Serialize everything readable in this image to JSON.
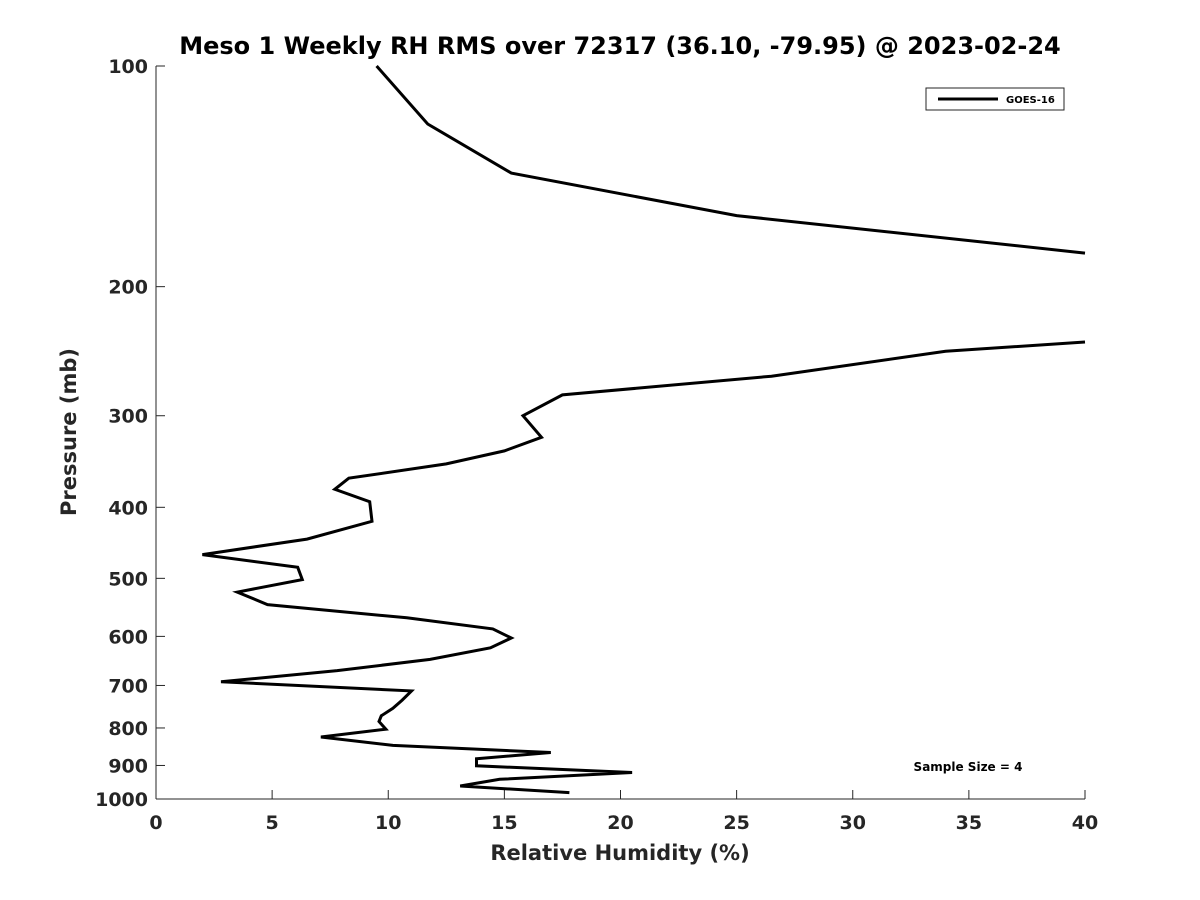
{
  "chart_data": {
    "type": "line",
    "title": "Meso 1 Weekly RH RMS over 72317 (36.10, -79.95) @ 2023-02-24",
    "xlabel": "Relative Humidity (%)",
    "ylabel": "Pressure (mb)",
    "xlim": [
      0,
      40
    ],
    "ylim": [
      100,
      1000
    ],
    "y_scale": "log",
    "y_reversed": true,
    "x_ticks": [
      "0",
      "5",
      "10",
      "15",
      "20",
      "25",
      "30",
      "35",
      "40"
    ],
    "y_ticks": [
      "100",
      "200",
      "300",
      "400",
      "500",
      "600",
      "700",
      "800",
      "900",
      "1000"
    ],
    "grid": false,
    "legend_position": "top-right",
    "annotation": "Sample Size = 4",
    "series": [
      {
        "name": "GOES-16",
        "color": "#000000",
        "segments": [
          [
            {
              "x": 9.5,
              "y": 100
            },
            {
              "x": 11.7,
              "y": 120
            },
            {
              "x": 15.3,
              "y": 140
            },
            {
              "x": 25.0,
              "y": 160
            },
            {
              "x": 40.0,
              "y": 180
            }
          ],
          [
            {
              "x": 40.0,
              "y": 238
            },
            {
              "x": 34.0,
              "y": 245
            },
            {
              "x": 26.5,
              "y": 265
            },
            {
              "x": 17.5,
              "y": 281
            },
            {
              "x": 15.8,
              "y": 300
            },
            {
              "x": 16.6,
              "y": 321
            },
            {
              "x": 15.0,
              "y": 335
            },
            {
              "x": 12.5,
              "y": 349
            },
            {
              "x": 8.3,
              "y": 365
            },
            {
              "x": 7.7,
              "y": 378
            },
            {
              "x": 9.2,
              "y": 393
            },
            {
              "x": 9.3,
              "y": 418
            },
            {
              "x": 6.5,
              "y": 442
            },
            {
              "x": 2.0,
              "y": 464
            },
            {
              "x": 6.1,
              "y": 483
            },
            {
              "x": 6.3,
              "y": 502
            },
            {
              "x": 3.5,
              "y": 522
            },
            {
              "x": 4.8,
              "y": 543
            },
            {
              "x": 10.8,
              "y": 566
            },
            {
              "x": 14.5,
              "y": 586
            },
            {
              "x": 15.3,
              "y": 603
            },
            {
              "x": 14.4,
              "y": 622
            },
            {
              "x": 11.8,
              "y": 645
            },
            {
              "x": 7.8,
              "y": 668
            },
            {
              "x": 2.8,
              "y": 692
            },
            {
              "x": 11.0,
              "y": 712
            },
            {
              "x": 10.6,
              "y": 733
            },
            {
              "x": 10.2,
              "y": 752
            },
            {
              "x": 9.7,
              "y": 770
            },
            {
              "x": 9.6,
              "y": 784
            },
            {
              "x": 9.9,
              "y": 803
            },
            {
              "x": 7.1,
              "y": 823
            },
            {
              "x": 10.2,
              "y": 845
            },
            {
              "x": 17.0,
              "y": 864
            },
            {
              "x": 13.8,
              "y": 881
            },
            {
              "x": 13.8,
              "y": 901
            },
            {
              "x": 20.5,
              "y": 920
            },
            {
              "x": 14.8,
              "y": 940
            },
            {
              "x": 13.1,
              "y": 960
            },
            {
              "x": 17.8,
              "y": 980
            }
          ]
        ]
      }
    ]
  }
}
